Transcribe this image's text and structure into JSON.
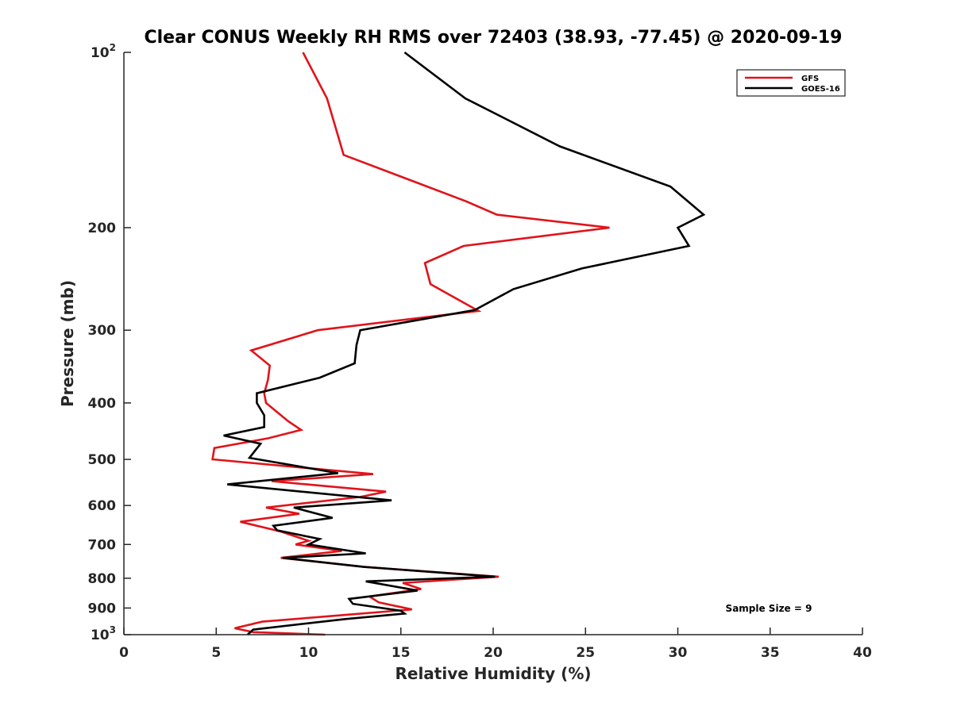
{
  "chart_data": {
    "type": "line",
    "title": "Clear CONUS Weekly RH RMS over 72403 (38.93, -77.45) @ 2020-09-19",
    "xlabel": "Relative Humidity (%)",
    "ylabel": "Pressure (mb)",
    "xlim": [
      0,
      40
    ],
    "ylim": [
      100,
      1000
    ],
    "yscale": "log",
    "y_reversed": true,
    "grid": false,
    "legend_position": "top-right",
    "x_ticks": [
      0,
      5,
      10,
      15,
      20,
      25,
      30,
      35,
      40
    ],
    "y_ticks": [
      {
        "value": 100,
        "label": "10",
        "exp": "2"
      },
      {
        "value": 200,
        "label": "200",
        "exp": ""
      },
      {
        "value": 300,
        "label": "300",
        "exp": ""
      },
      {
        "value": 400,
        "label": "400",
        "exp": ""
      },
      {
        "value": 500,
        "label": "500",
        "exp": ""
      },
      {
        "value": 600,
        "label": "600",
        "exp": ""
      },
      {
        "value": 700,
        "label": "700",
        "exp": ""
      },
      {
        "value": 800,
        "label": "800",
        "exp": ""
      },
      {
        "value": 900,
        "label": "900",
        "exp": ""
      },
      {
        "value": 1000,
        "label": "10",
        "exp": "3"
      }
    ],
    "series": [
      {
        "name": "GFS",
        "color": "#e0141a",
        "points": [
          [
            9.7,
            100
          ],
          [
            11.0,
            120
          ],
          [
            11.9,
            150
          ],
          [
            18.5,
            180
          ],
          [
            20.2,
            190
          ],
          [
            26.3,
            200
          ],
          [
            18.4,
            215
          ],
          [
            16.3,
            230
          ],
          [
            16.6,
            250
          ],
          [
            19.2,
            278
          ],
          [
            10.5,
            300
          ],
          [
            6.9,
            325
          ],
          [
            7.9,
            345
          ],
          [
            7.8,
            365
          ],
          [
            7.6,
            385
          ],
          [
            7.7,
            400
          ],
          [
            8.9,
            430
          ],
          [
            9.6,
            445
          ],
          [
            7.8,
            460
          ],
          [
            4.9,
            478
          ],
          [
            4.8,
            500
          ],
          [
            13.5,
            530
          ],
          [
            8.0,
            545
          ],
          [
            14.2,
            568
          ],
          [
            12.8,
            580
          ],
          [
            7.7,
            605
          ],
          [
            9.5,
            620
          ],
          [
            6.3,
            640
          ],
          [
            8.5,
            665
          ],
          [
            10.0,
            690
          ],
          [
            9.3,
            700
          ],
          [
            11.8,
            718
          ],
          [
            8.5,
            738
          ],
          [
            13.0,
            765
          ],
          [
            20.3,
            795
          ],
          [
            15.1,
            815
          ],
          [
            16.1,
            835
          ],
          [
            13.3,
            860
          ],
          [
            13.8,
            880
          ],
          [
            15.6,
            905
          ],
          [
            12.0,
            925
          ],
          [
            7.5,
            950
          ],
          [
            6.0,
            975
          ],
          [
            7.0,
            990
          ],
          [
            10.9,
            1000
          ]
        ]
      },
      {
        "name": "GOES-16",
        "color": "#000000",
        "points": [
          [
            15.2,
            100
          ],
          [
            18.5,
            120
          ],
          [
            23.6,
            145
          ],
          [
            29.6,
            170
          ],
          [
            31.4,
            190
          ],
          [
            30.0,
            200
          ],
          [
            30.6,
            215
          ],
          [
            24.8,
            235
          ],
          [
            21.1,
            255
          ],
          [
            19.0,
            277
          ],
          [
            12.8,
            300
          ],
          [
            12.6,
            318
          ],
          [
            12.5,
            342
          ],
          [
            10.6,
            362
          ],
          [
            7.2,
            385
          ],
          [
            7.2,
            400
          ],
          [
            7.6,
            420
          ],
          [
            7.6,
            440
          ],
          [
            5.4,
            455
          ],
          [
            7.4,
            470
          ],
          [
            6.8,
            497
          ],
          [
            11.6,
            528
          ],
          [
            5.6,
            552
          ],
          [
            14.5,
            588
          ],
          [
            9.2,
            605
          ],
          [
            11.3,
            630
          ],
          [
            8.1,
            650
          ],
          [
            8.3,
            662
          ],
          [
            10.6,
            685
          ],
          [
            10.0,
            700
          ],
          [
            13.1,
            725
          ],
          [
            8.6,
            738
          ],
          [
            13.0,
            765
          ],
          [
            20.1,
            795
          ],
          [
            13.1,
            810
          ],
          [
            15.9,
            840
          ],
          [
            12.2,
            868
          ],
          [
            12.4,
            885
          ],
          [
            15.0,
            910
          ],
          [
            15.2,
            920
          ],
          [
            12.0,
            940
          ],
          [
            7.0,
            980
          ],
          [
            6.7,
            1000
          ]
        ]
      }
    ],
    "annotations": [
      "Sample Size = 9"
    ]
  }
}
